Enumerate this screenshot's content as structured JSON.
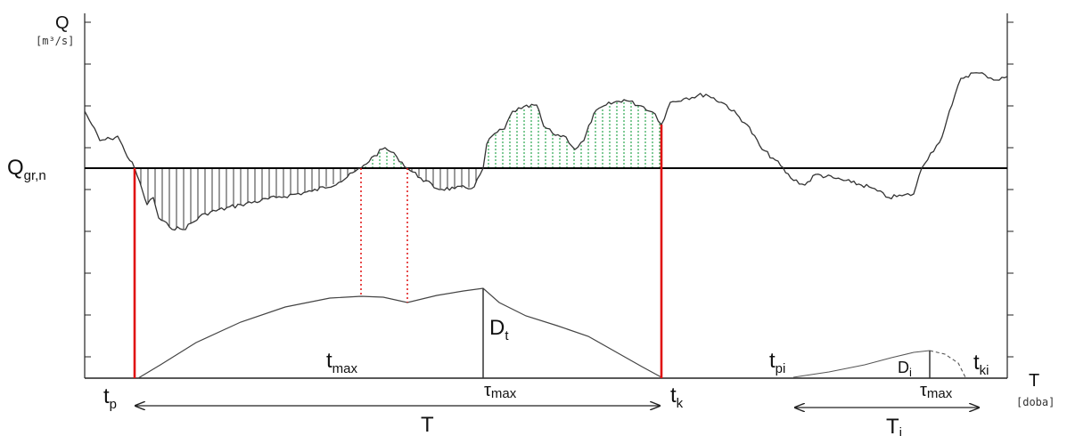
{
  "axes": {
    "y_label": "Q",
    "y_unit": "[m³/s]",
    "x_label": "T",
    "x_unit": "[doba]"
  },
  "threshold": {
    "base": "Q",
    "sub": "gr,n"
  },
  "labels": {
    "t_p": {
      "base": "t",
      "sub": "p"
    },
    "t_max": {
      "base": "t",
      "sub": "max"
    },
    "D_t": {
      "base": "D",
      "sub": "t"
    },
    "tau_max": {
      "base": "τ",
      "sub": "max"
    },
    "t_k": {
      "base": "t",
      "sub": "k"
    },
    "T": "T",
    "t_pi": {
      "base": "t",
      "sub": "pi"
    },
    "D_i": {
      "base": "D",
      "sub": "i"
    },
    "t_ki": {
      "base": "t",
      "sub": "ki"
    },
    "tau_max_i": {
      "base": "τ",
      "sub": "max"
    },
    "T_i": {
      "base": "T",
      "sub": "i"
    }
  },
  "colors": {
    "curve": "#333333",
    "threshold": "#000000",
    "event_bounds": "#e01010",
    "deficit_hatch": "#222222",
    "surplus_hatch": "#18a040"
  }
}
